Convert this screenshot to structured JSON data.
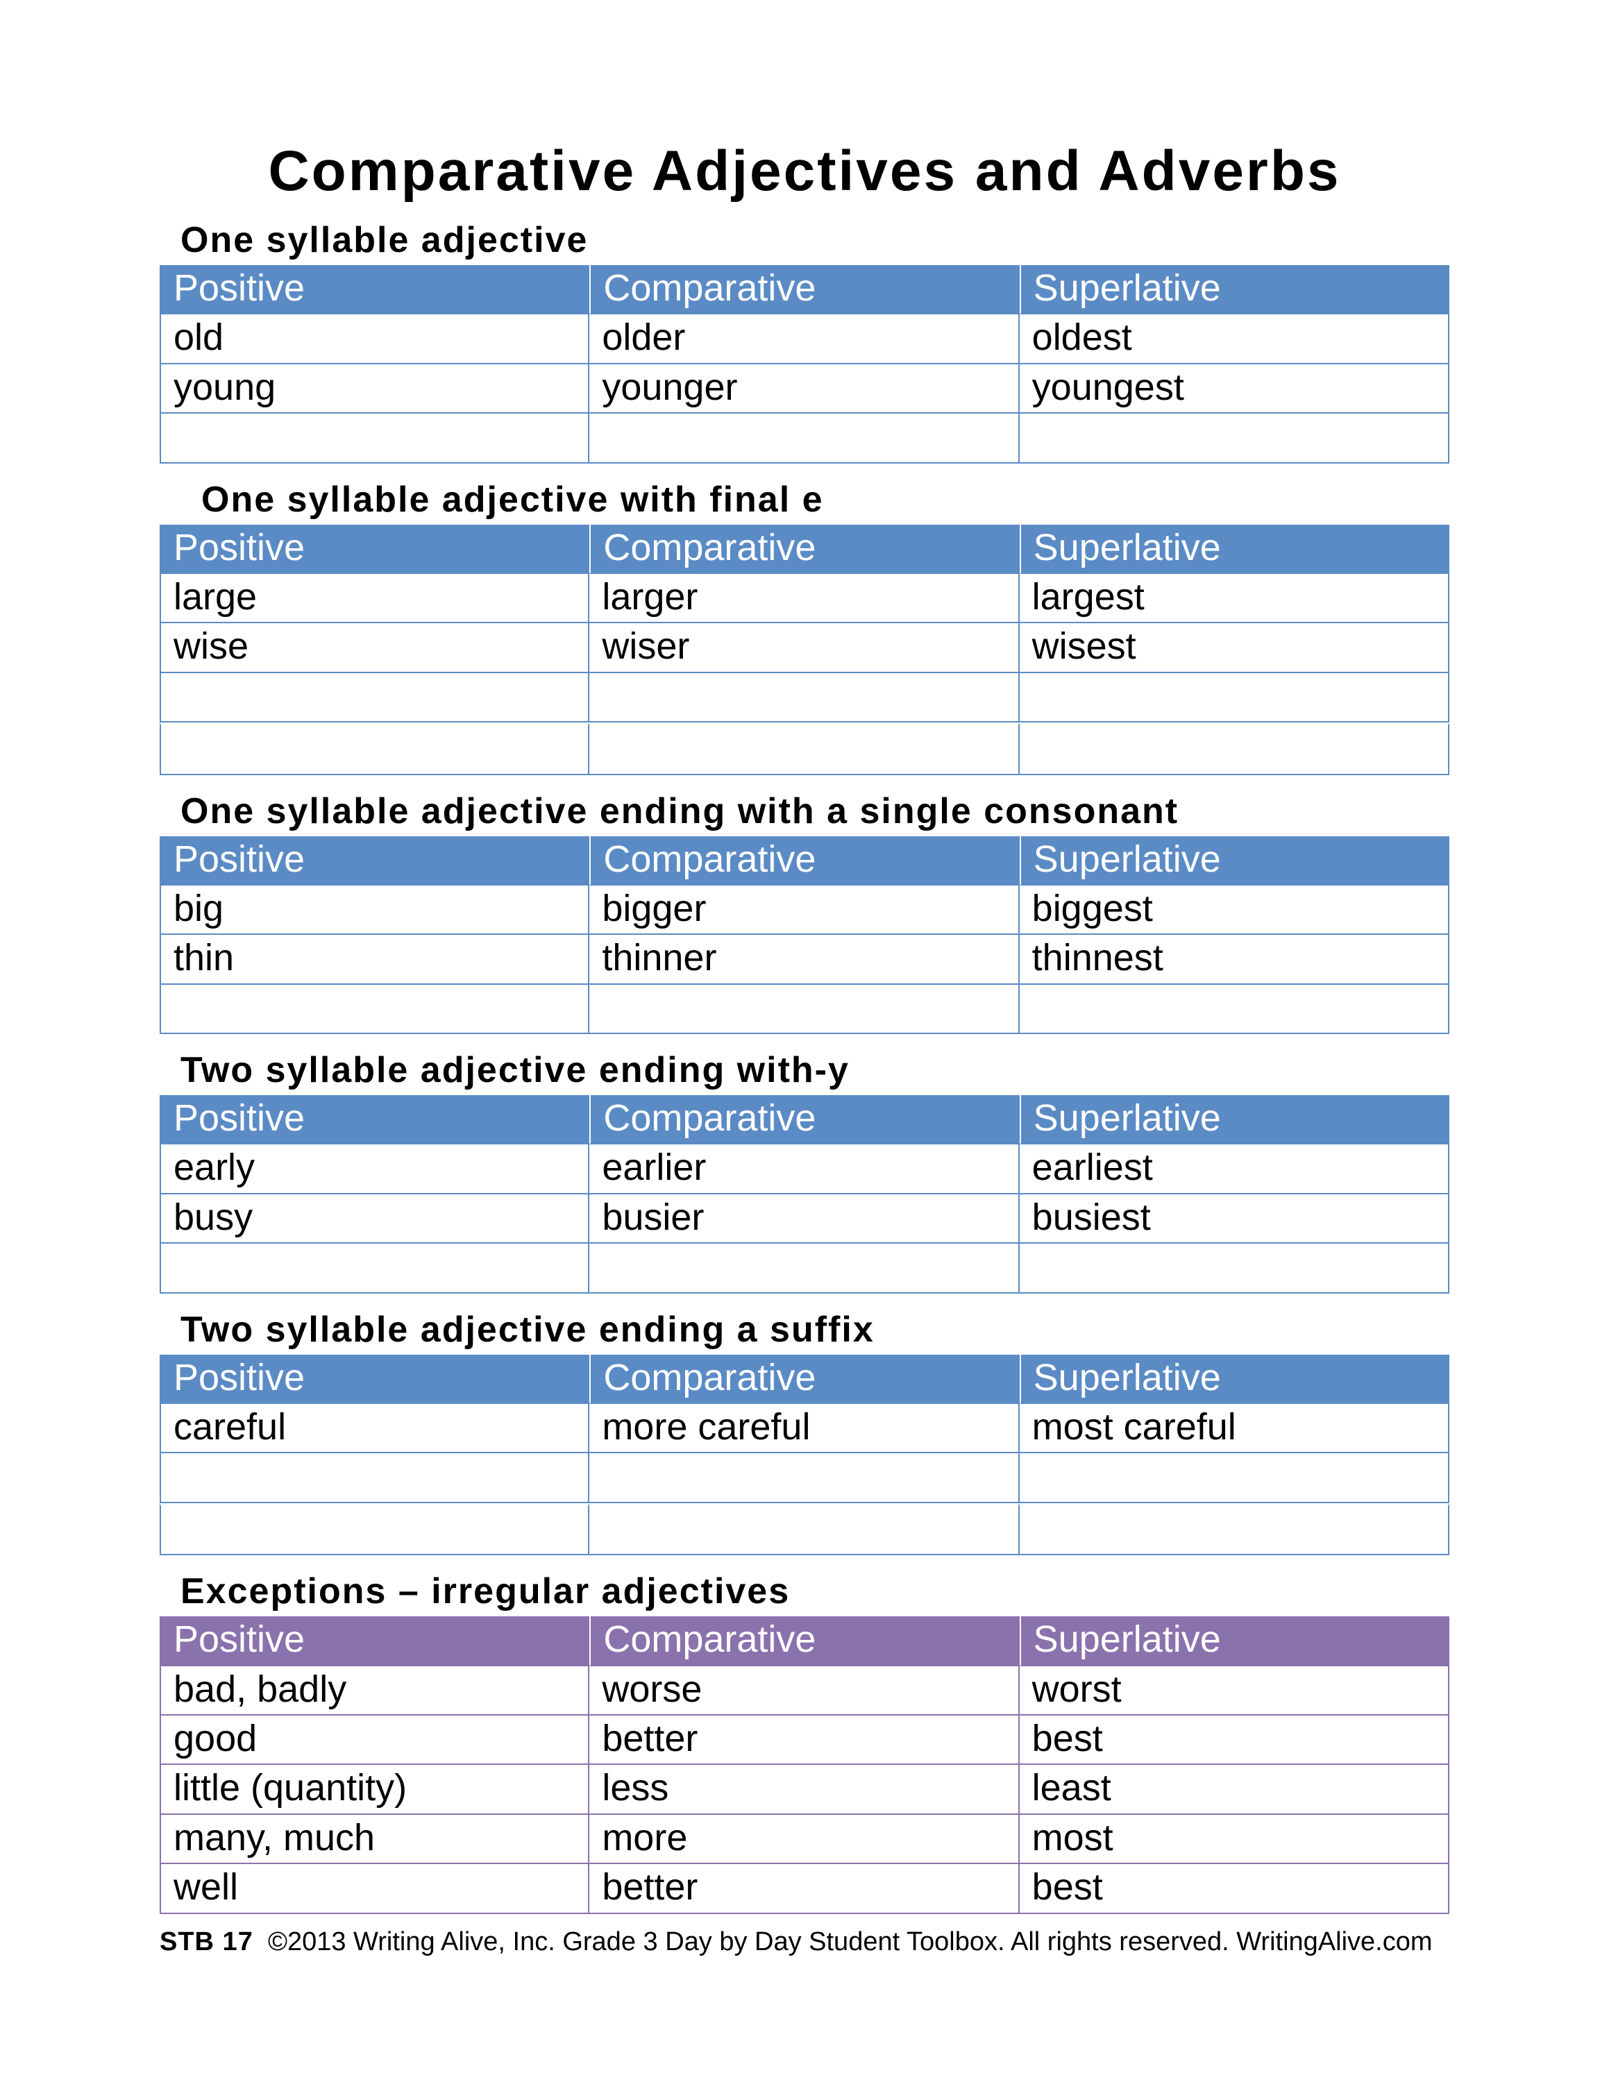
{
  "title": "Comparative Adjectives and Adverbs",
  "columns": [
    "Positive",
    "Comparative",
    "Superlative"
  ],
  "colors": {
    "blue_header": "#5b8bc5",
    "purple_header": "#8a72ad",
    "text": "#000000",
    "header_text": "#ffffff",
    "background": "#ffffff"
  },
  "sections": [
    {
      "heading": "One syllable adjective",
      "theme": "blue",
      "indent": false,
      "rows": [
        [
          "old",
          "older",
          "oldest"
        ],
        [
          "young",
          "younger",
          "youngest"
        ],
        [
          "",
          "",
          ""
        ]
      ]
    },
    {
      "heading": "One syllable adjective with final e",
      "theme": "blue",
      "indent": true,
      "rows": [
        [
          "large",
          "larger",
          "largest"
        ],
        [
          "wise",
          "wiser",
          "wisest"
        ],
        [
          "",
          "",
          ""
        ],
        [
          "",
          "",
          ""
        ]
      ],
      "gap_before_row": 3
    },
    {
      "heading": "One syllable adjective ending with a single consonant",
      "theme": "blue",
      "indent": false,
      "rows": [
        [
          "big",
          "bigger",
          "biggest"
        ],
        [
          "thin",
          "thinner",
          "thinnest"
        ],
        [
          "",
          "",
          ""
        ]
      ]
    },
    {
      "heading": "Two syllable adjective ending with-y",
      "theme": "blue",
      "indent": false,
      "rows": [
        [
          "early",
          "earlier",
          "earliest"
        ],
        [
          "busy",
          "busier",
          "busiest"
        ],
        [
          "",
          "",
          ""
        ]
      ]
    },
    {
      "heading": "Two syllable adjective ending a suffix",
      "theme": "blue",
      "indent": false,
      "rows": [
        [
          "careful",
          "more careful",
          "most careful"
        ],
        [
          "",
          "",
          ""
        ],
        [
          "",
          "",
          ""
        ]
      ],
      "gap_before_row": 2
    },
    {
      "heading": "Exceptions – irregular adjectives",
      "theme": "purple",
      "indent": false,
      "rows": [
        [
          "bad, badly",
          "worse",
          "worst"
        ],
        [
          "good",
          "better",
          "best"
        ],
        [
          "little (quantity)",
          "less",
          "least"
        ],
        [
          "many, much",
          "more",
          "most"
        ],
        [
          "well",
          "better",
          "best"
        ]
      ]
    }
  ],
  "footer": {
    "stb": "STB 17",
    "copyright": "©2013 Writing Alive, Inc. Grade 3 Day by Day Student Toolbox. All rights reserved. WritingAlive.com"
  }
}
